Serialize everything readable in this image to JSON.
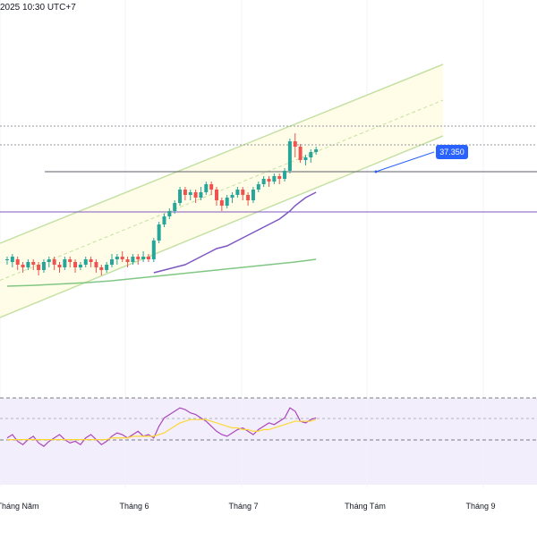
{
  "header": {
    "timestamp": "2025 10:30 UTC+7"
  },
  "colors": {
    "up": "#26a69a",
    "down": "#ef5350",
    "channel_fill": "#fffde7",
    "channel_line": "#c5e1a5",
    "ma_short": "#7e57c2",
    "ma_long": "#81c784",
    "rsi_line": "#ab47bc",
    "rsi_ma": "#fdd835",
    "rsi_fill": "#f3eefb",
    "badge": "#2962ff",
    "hline": "#9598a1"
  },
  "price_badge": "37.350",
  "chart_data": {
    "type": "candlestick",
    "title": "",
    "x_axis_labels": [
      "Tháng Năm",
      "Tháng 6",
      "Tháng 7",
      "Tháng Tám",
      "Tháng 9"
    ],
    "x_axis_months": [
      "2025-05",
      "2025-06",
      "2025-07",
      "2025-08",
      "2025-09"
    ],
    "last_price": 37350,
    "horizontal_lines": [
      "dotted-top",
      "dotted-mid",
      "solid-support-1",
      "solid-support-2"
    ],
    "candles": [
      [
        100,
        100,
        98,
        101
      ],
      [
        99,
        101,
        97,
        102
      ],
      [
        100,
        98,
        96,
        101
      ],
      [
        98,
        97,
        95,
        99
      ],
      [
        97,
        99,
        96,
        100
      ],
      [
        99,
        98,
        96,
        100
      ],
      [
        98,
        96,
        94,
        99
      ],
      [
        96,
        99,
        95,
        100
      ],
      [
        99,
        100,
        97,
        101
      ],
      [
        100,
        98,
        96,
        101
      ],
      [
        98,
        97,
        95,
        99
      ],
      [
        97,
        100,
        96,
        101
      ],
      [
        100,
        99,
        97,
        101
      ],
      [
        99,
        97,
        95,
        100
      ],
      [
        97,
        98,
        96,
        99
      ],
      [
        98,
        100,
        97,
        101
      ],
      [
        100,
        99,
        97,
        101
      ],
      [
        99,
        97,
        95,
        100
      ],
      [
        97,
        96,
        94,
        98
      ],
      [
        96,
        98,
        95,
        99
      ],
      [
        98,
        100,
        97,
        102
      ],
      [
        100,
        101,
        98,
        102
      ],
      [
        101,
        100,
        99,
        103
      ],
      [
        100,
        99,
        97,
        101
      ],
      [
        99,
        101,
        98,
        102
      ],
      [
        101,
        100,
        98,
        102
      ],
      [
        100,
        101,
        99,
        103
      ],
      [
        101,
        100,
        99,
        102
      ],
      [
        100,
        107,
        99,
        108
      ],
      [
        107,
        113,
        106,
        114
      ],
      [
        113,
        116,
        112,
        117
      ],
      [
        116,
        118,
        115,
        119
      ],
      [
        118,
        121,
        117,
        122
      ],
      [
        121,
        126,
        120,
        127
      ],
      [
        126,
        124,
        122,
        127
      ],
      [
        124,
        125,
        122,
        126
      ],
      [
        125,
        123,
        121,
        126
      ],
      [
        123,
        125,
        122,
        127
      ],
      [
        125,
        128,
        124,
        129
      ],
      [
        128,
        126,
        124,
        129
      ],
      [
        126,
        122,
        120,
        127
      ],
      [
        122,
        120,
        118,
        123
      ],
      [
        120,
        123,
        119,
        124
      ],
      [
        123,
        124,
        121,
        125
      ],
      [
        124,
        126,
        123,
        127
      ],
      [
        126,
        124,
        122,
        127
      ],
      [
        124,
        122,
        120,
        125
      ],
      [
        122,
        126,
        121,
        127
      ],
      [
        126,
        128,
        125,
        129
      ],
      [
        128,
        130,
        127,
        131
      ],
      [
        130,
        129,
        127,
        131
      ],
      [
        129,
        131,
        128,
        132
      ],
      [
        131,
        130,
        128,
        132
      ],
      [
        130,
        133,
        129,
        134
      ],
      [
        133,
        144,
        132,
        145
      ],
      [
        144,
        142,
        138,
        147
      ],
      [
        142,
        137,
        136,
        143
      ],
      [
        137,
        138,
        135,
        139
      ],
      [
        138,
        140,
        136,
        141
      ],
      [
        140,
        141,
        139,
        142
      ]
    ],
    "ma_short": [
      [
        28,
        95
      ],
      [
        29,
        95.5
      ],
      [
        30,
        96
      ],
      [
        31,
        96.5
      ],
      [
        32,
        97
      ],
      [
        33,
        97.5
      ],
      [
        34,
        98
      ],
      [
        35,
        99
      ],
      [
        36,
        100
      ],
      [
        37,
        101
      ],
      [
        38,
        102
      ],
      [
        39,
        103
      ],
      [
        40,
        104
      ],
      [
        41,
        104.5
      ],
      [
        42,
        105
      ],
      [
        43,
        106
      ],
      [
        44,
        107
      ],
      [
        45,
        108
      ],
      [
        46,
        109
      ],
      [
        47,
        110
      ],
      [
        48,
        111
      ],
      [
        49,
        112
      ],
      [
        50,
        113
      ],
      [
        51,
        114
      ],
      [
        52,
        115
      ],
      [
        53,
        116.5
      ],
      [
        54,
        118
      ],
      [
        55,
        120
      ],
      [
        56,
        121.5
      ],
      [
        57,
        123
      ],
      [
        58,
        124
      ],
      [
        59,
        125
      ]
    ],
    "ma_long": [
      [
        0,
        90
      ],
      [
        5,
        90.3
      ],
      [
        10,
        90.8
      ],
      [
        15,
        91.3
      ],
      [
        20,
        92
      ],
      [
        25,
        93
      ],
      [
        30,
        94
      ],
      [
        35,
        95
      ],
      [
        40,
        96
      ],
      [
        45,
        97
      ],
      [
        50,
        98
      ],
      [
        55,
        99
      ],
      [
        59,
        100
      ]
    ],
    "channel": {
      "upper": [
        [
          0,
          103
        ],
        [
          100,
          158
        ]
      ],
      "mid": [
        [
          0,
          97
        ],
        [
          100,
          152
        ]
      ],
      "lower": [
        [
          0,
          91
        ],
        [
          100,
          146
        ]
      ]
    },
    "rsi": [
      48,
      50,
      46,
      44,
      47,
      49,
      45,
      43,
      46,
      48,
      50,
      47,
      45,
      46,
      44,
      48,
      50,
      47,
      44,
      46,
      49,
      51,
      50,
      48,
      50,
      52,
      49,
      50,
      48,
      55,
      60,
      62,
      64,
      66,
      65,
      63,
      62,
      60,
      58,
      55,
      52,
      50,
      49,
      51,
      53,
      54,
      52,
      50,
      53,
      55,
      57,
      56,
      58,
      60,
      66,
      64,
      58,
      57,
      59,
      60
    ],
    "rsi_ma": [
      47,
      47,
      47,
      47,
      47,
      47,
      47,
      47,
      47,
      47,
      47,
      47,
      47,
      47,
      47,
      47,
      47,
      47,
      47,
      47,
      48,
      48,
      48,
      48,
      49,
      49,
      49,
      49,
      49,
      50,
      51,
      53,
      55,
      57,
      58,
      59,
      59,
      59,
      59,
      58,
      57,
      56,
      55,
      54,
      54,
      53,
      53,
      52,
      52,
      53,
      53,
      54,
      55,
      56,
      57,
      58,
      58,
      58,
      58,
      59
    ]
  }
}
